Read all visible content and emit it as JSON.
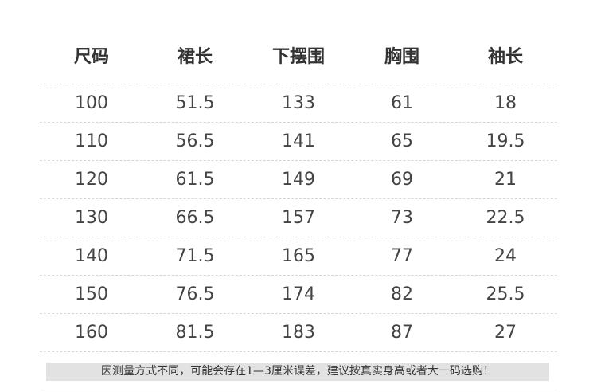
{
  "table": {
    "header": [
      "尺码",
      "裙长",
      "下摆围",
      "胸围",
      "袖长"
    ],
    "rows": [
      [
        "100",
        "51.5",
        "133",
        "61",
        "18"
      ],
      [
        "110",
        "56.5",
        "141",
        "65",
        "19.5"
      ],
      [
        "120",
        "61.5",
        "149",
        "69",
        "21"
      ],
      [
        "130",
        "66.5",
        "157",
        "73",
        "22.5"
      ],
      [
        "140",
        "71.5",
        "165",
        "77",
        "24"
      ],
      [
        "150",
        "76.5",
        "174",
        "82",
        "25.5"
      ],
      [
        "160",
        "81.5",
        "183",
        "87",
        "27"
      ]
    ]
  },
  "note": "因测量方式不同，可能会存在1—3厘米误差，建议按真实身高或者大一码选购！"
}
